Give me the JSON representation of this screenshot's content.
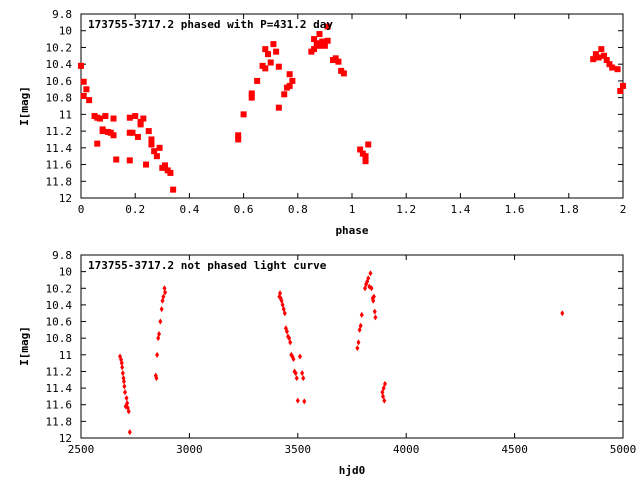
{
  "colors": {
    "points": "#ff0000",
    "axes": "#000000",
    "background": "#ffffff"
  },
  "chart_data": [
    {
      "type": "scatter",
      "title": "173755-3717.2 phased with P=431.2 day",
      "xlabel": "phase",
      "ylabel": "I[mag]",
      "xlim": [
        0,
        2
      ],
      "ylim": [
        12,
        9.8
      ],
      "y_inverted": true,
      "xticks": [
        "0",
        "0.2",
        "0.4",
        "0.6",
        "0.8",
        "1",
        "1.2",
        "1.4",
        "1.6",
        "1.8",
        "2"
      ],
      "yticks": [
        "9.8",
        "10",
        "10.2",
        "10.4",
        "10.6",
        "10.8",
        "11",
        "11.2",
        "11.4",
        "11.6",
        "11.8",
        "12"
      ],
      "marker": "filled-square",
      "x": [
        0.0,
        0.01,
        0.01,
        0.02,
        0.03,
        0.05,
        0.06,
        0.06,
        0.07,
        0.08,
        0.08,
        0.09,
        0.1,
        0.11,
        0.12,
        0.12,
        0.13,
        0.18,
        0.18,
        0.18,
        0.19,
        0.2,
        0.21,
        0.22,
        0.22,
        0.23,
        0.24,
        0.25,
        0.26,
        0.26,
        0.27,
        0.28,
        0.29,
        0.3,
        0.31,
        0.32,
        0.33,
        0.34,
        0.58,
        0.58,
        0.6,
        0.63,
        0.63,
        0.65,
        0.67,
        0.68,
        0.68,
        0.69,
        0.7,
        0.71,
        0.72,
        0.73,
        0.73,
        0.75,
        0.76,
        0.77,
        0.77,
        0.78,
        0.85,
        0.86,
        0.86,
        0.87,
        0.88,
        0.88,
        0.89,
        0.9,
        0.91,
        0.91,
        0.93,
        0.94,
        0.95,
        0.96,
        0.97,
        1.03,
        1.04,
        1.05,
        1.05,
        1.06,
        1.89,
        1.9,
        1.91,
        1.92,
        1.93,
        1.94,
        1.95,
        1.96,
        1.98,
        1.99,
        2.0
      ],
      "y": [
        10.42,
        10.61,
        10.78,
        10.7,
        10.83,
        11.02,
        11.04,
        11.35,
        11.05,
        11.18,
        11.2,
        11.02,
        11.21,
        11.22,
        11.25,
        11.05,
        11.54,
        11.04,
        11.22,
        11.55,
        11.22,
        11.02,
        11.27,
        11.09,
        11.12,
        11.05,
        11.6,
        11.2,
        11.3,
        11.36,
        11.44,
        11.5,
        11.4,
        11.64,
        11.61,
        11.67,
        11.7,
        11.9,
        11.3,
        11.25,
        11.0,
        10.8,
        10.75,
        10.6,
        10.42,
        10.45,
        10.22,
        10.28,
        10.38,
        10.16,
        10.25,
        10.43,
        10.92,
        10.76,
        10.68,
        10.66,
        10.52,
        10.6,
        10.25,
        10.22,
        10.1,
        10.15,
        10.18,
        10.04,
        10.13,
        10.18,
        10.12,
        9.95,
        10.35,
        10.33,
        10.37,
        10.48,
        10.51,
        11.42,
        11.47,
        11.5,
        11.56,
        11.36,
        10.34,
        10.28,
        10.32,
        10.22,
        10.3,
        10.35,
        10.4,
        10.44,
        10.46,
        10.72,
        10.66
      ]
    },
    {
      "type": "scatter",
      "title": "173755-3717.2 not phased light curve",
      "xlabel": "hjd0",
      "ylabel": "I[mag]",
      "xlim": [
        2500,
        5000
      ],
      "ylim": [
        12,
        9.8
      ],
      "y_inverted": true,
      "xticks": [
        "2500",
        "3000",
        "3500",
        "4000",
        "4500",
        "5000"
      ],
      "yticks": [
        "9.8",
        "10",
        "10.2",
        "10.4",
        "10.6",
        "10.8",
        "11",
        "11.2",
        "11.4",
        "11.6",
        "11.8",
        "12"
      ],
      "marker": "small-diamond",
      "x": [
        2680,
        2685,
        2688,
        2690,
        2693,
        2696,
        2698,
        2700,
        2703,
        2706,
        2710,
        2713,
        2716,
        2720,
        2725,
        2845,
        2848,
        2851,
        2856,
        2860,
        2866,
        2872,
        2876,
        2880,
        2885,
        2888,
        3415,
        3418,
        3421,
        3425,
        3430,
        3435,
        3440,
        3445,
        3450,
        3455,
        3460,
        3465,
        3470,
        3475,
        3480,
        3485,
        3490,
        3495,
        3500,
        3510,
        3520,
        3525,
        3530,
        3775,
        3780,
        3785,
        3790,
        3795,
        3810,
        3815,
        3820,
        3825,
        3830,
        3835,
        3840,
        3845,
        3848,
        3851,
        3855,
        3858,
        3890,
        3893,
        3896,
        3899,
        3902,
        4720
      ],
      "y": [
        11.02,
        11.06,
        11.1,
        11.15,
        11.22,
        11.28,
        11.32,
        11.38,
        11.45,
        11.62,
        11.52,
        11.58,
        11.64,
        11.68,
        11.93,
        11.25,
        11.28,
        11.0,
        10.8,
        10.75,
        10.6,
        10.45,
        10.35,
        10.3,
        10.2,
        10.25,
        10.3,
        10.26,
        10.32,
        10.35,
        10.4,
        10.45,
        10.5,
        10.68,
        10.72,
        10.78,
        10.8,
        10.85,
        11.0,
        11.02,
        11.05,
        11.2,
        11.22,
        11.28,
        11.55,
        11.02,
        11.22,
        11.28,
        11.56,
        10.92,
        10.85,
        10.7,
        10.65,
        10.52,
        10.2,
        10.15,
        10.12,
        10.08,
        10.18,
        10.02,
        10.2,
        10.32,
        10.35,
        10.3,
        10.48,
        10.55,
        11.45,
        11.5,
        11.4,
        11.55,
        11.35,
        10.5
      ]
    }
  ]
}
